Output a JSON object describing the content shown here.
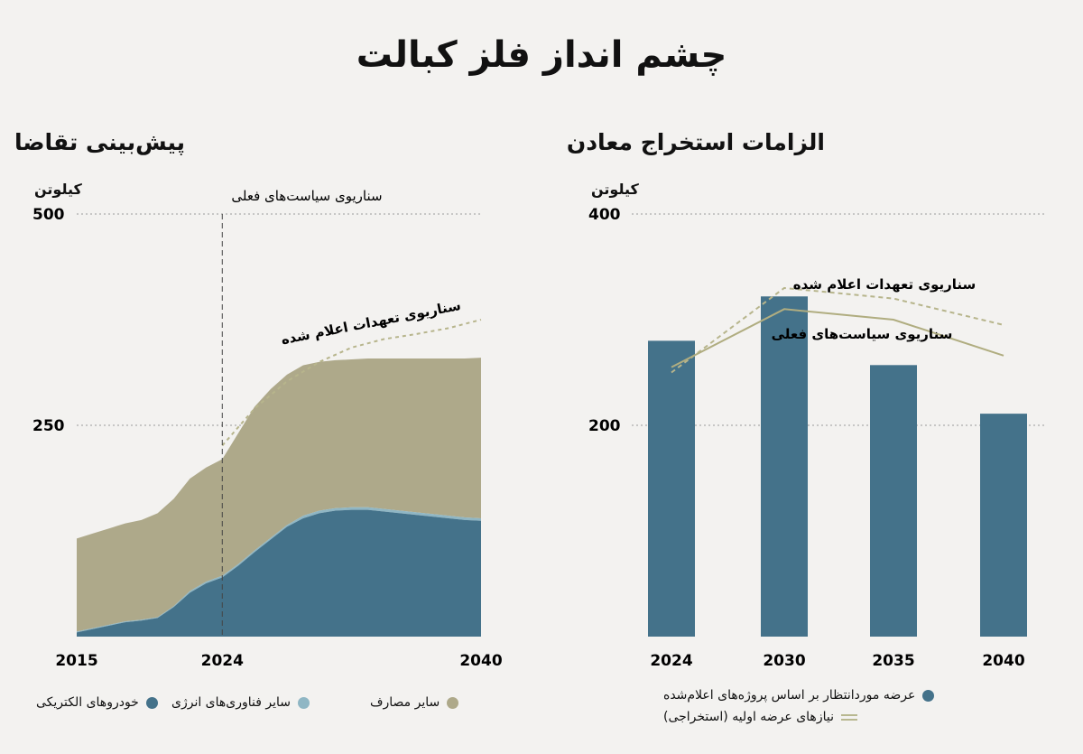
{
  "title": "چشم انداز فلز کبالت",
  "colors": {
    "ev": "#44728a",
    "energy": "#8fb6c4",
    "other": "#aea98a",
    "grid": "#9a9a9a",
    "dashed": "#b7b58c",
    "solid": "#b0ad80"
  },
  "chart_data": [
    {
      "type": "area",
      "title": "پیش‌بینی تقاضا",
      "ylabel": "کیلوتن",
      "ylim": [
        0,
        500
      ],
      "yticks": [
        250,
        500
      ],
      "x_ticks": [
        "2015",
        "2024",
        "2040"
      ],
      "x": [
        2015,
        2016,
        2017,
        2018,
        2019,
        2020,
        2021,
        2022,
        2023,
        2024,
        2025,
        2026,
        2027,
        2028,
        2029,
        2030,
        2031,
        2032,
        2033,
        2034,
        2035,
        2036,
        2037,
        2038,
        2039,
        2040
      ],
      "vertical_marker": {
        "x": 2024,
        "label": "سناریوی سیاست‌های فعلی"
      },
      "series": [
        {
          "name": "خودروهای الکتریکی",
          "values": [
            5,
            9,
            13,
            17,
            19,
            22,
            35,
            52,
            63,
            70,
            84,
            100,
            115,
            130,
            140,
            146,
            149,
            150,
            150,
            148,
            146,
            144,
            142,
            140,
            138,
            137
          ]
        },
        {
          "name": "سایر فناوری‌های انرژی",
          "values": [
            1,
            1,
            1,
            1,
            1,
            1,
            1,
            2,
            2,
            2,
            2,
            2,
            2,
            2,
            3,
            3,
            3,
            3,
            3,
            3,
            3,
            3,
            3,
            3,
            3,
            3
          ]
        },
        {
          "name": "سایر مصارف",
          "values": [
            110,
            112,
            114,
            116,
            118,
            123,
            127,
            133,
            135,
            138,
            155,
            170,
            176,
            178,
            178,
            176,
            175,
            175,
            176,
            178,
            180,
            182,
            184,
            186,
            188,
            190
          ]
        }
      ],
      "announced_scenario": {
        "label": "سناریوی تعهدات اعلام شده",
        "x": [
          2024,
          2026,
          2028,
          2030,
          2032,
          2034,
          2036,
          2038,
          2040
        ],
        "values": [
          226,
          270,
          302,
          325,
          342,
          352,
          358,
          365,
          375
        ]
      }
    },
    {
      "type": "bar",
      "title": "الزامات استخراج  معادن",
      "ylabel": "کیلوتن",
      "ylim": [
        0,
        400
      ],
      "yticks": [
        200,
        400
      ],
      "categories": [
        "2024",
        "2030",
        "2035",
        "2040"
      ],
      "series": [
        {
          "name": "عرضه موردانتظار بر اساس پروژه‌های اعلام‌شده",
          "values": [
            280,
            322,
            257,
            211
          ]
        }
      ],
      "lines": [
        {
          "name": "سناریوی تعهدات اعلام شده",
          "style": "dashed",
          "values": [
            250,
            330,
            320,
            295
          ]
        },
        {
          "name": "سناریوی سیاست‌های فعلی",
          "style": "solid",
          "values": [
            255,
            310,
            300,
            266
          ]
        }
      ],
      "legend_primary_needs": "نیازهای عرضه اولیه (استخراجی)"
    }
  ]
}
